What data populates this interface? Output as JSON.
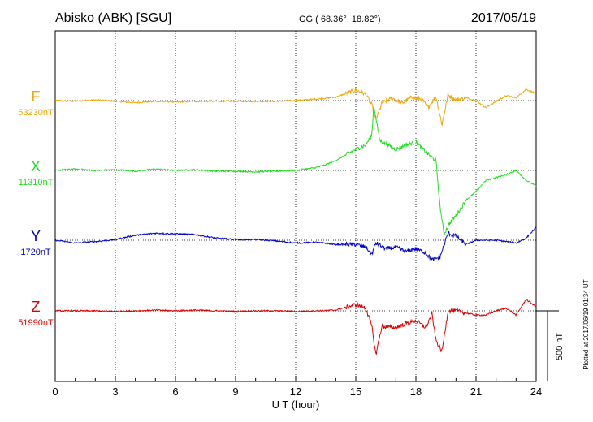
{
  "header": {
    "station": "Abisko (ABK)  [SGU]",
    "coords": "GG ( 68.36°,  18.82°)",
    "date": "2017/05/19"
  },
  "footer": {
    "plotted": "Plotted at 2017/06/19 01:34 UT"
  },
  "scale": {
    "label": "500 nT",
    "value_nT": 500
  },
  "colors": {
    "F": "#f0a800",
    "X": "#22dd22",
    "Y": "#0000cc",
    "Z": "#dd0000"
  },
  "chart_data": {
    "type": "line",
    "title": "Abisko (ABK)  [SGU]",
    "xlabel": "U T (hour)",
    "xlim": [
      0,
      24
    ],
    "x_ticks": [
      "0",
      "3",
      "6",
      "9",
      "12",
      "15",
      "18",
      "21",
      "24"
    ],
    "grid": true,
    "scale_bar_nT": 500,
    "series": [
      {
        "name": "F",
        "baseline_label": "53230nT",
        "baseline_nT": 53230,
        "points": [
          [
            0,
            53230
          ],
          [
            1,
            53225
          ],
          [
            2,
            53235
          ],
          [
            3,
            53225
          ],
          [
            4,
            53215
          ],
          [
            5,
            53225
          ],
          [
            6,
            53220
          ],
          [
            7,
            53225
          ],
          [
            8,
            53225
          ],
          [
            9,
            53225
          ],
          [
            10,
            53225
          ],
          [
            11,
            53225
          ],
          [
            12,
            53230
          ],
          [
            13,
            53240
          ],
          [
            14,
            53255
          ],
          [
            14.5,
            53280
          ],
          [
            15,
            53305
          ],
          [
            15.5,
            53275
          ],
          [
            15.8,
            53200
          ],
          [
            16,
            53090
          ],
          [
            16.3,
            53210
          ],
          [
            16.8,
            53250
          ],
          [
            17.3,
            53210
          ],
          [
            17.8,
            53255
          ],
          [
            18.3,
            53240
          ],
          [
            18.6,
            53180
          ],
          [
            19,
            53260
          ],
          [
            19.3,
            53060
          ],
          [
            19.6,
            53270
          ],
          [
            20,
            53235
          ],
          [
            20.5,
            53250
          ],
          [
            21,
            53230
          ],
          [
            21.5,
            53180
          ],
          [
            22,
            53225
          ],
          [
            22.5,
            53265
          ],
          [
            23,
            53250
          ],
          [
            23.5,
            53310
          ],
          [
            24,
            53280
          ]
        ]
      },
      {
        "name": "X",
        "baseline_label": "11310nT",
        "baseline_nT": 11310,
        "points": [
          [
            0,
            11310
          ],
          [
            1,
            11320
          ],
          [
            2,
            11310
          ],
          [
            3,
            11315
          ],
          [
            4,
            11305
          ],
          [
            5,
            11320
          ],
          [
            6,
            11310
          ],
          [
            7,
            11315
          ],
          [
            8,
            11305
          ],
          [
            9,
            11305
          ],
          [
            10,
            11300
          ],
          [
            11,
            11305
          ],
          [
            12,
            11310
          ],
          [
            13,
            11330
          ],
          [
            13.5,
            11350
          ],
          [
            14,
            11380
          ],
          [
            15,
            11460
          ],
          [
            15.5,
            11490
          ],
          [
            15.8,
            11560
          ],
          [
            15.9,
            11770
          ],
          [
            16.2,
            11520
          ],
          [
            17,
            11460
          ],
          [
            17.5,
            11490
          ],
          [
            18,
            11510
          ],
          [
            18.5,
            11440
          ],
          [
            19,
            11380
          ],
          [
            19.2,
            11060
          ],
          [
            19.4,
            10860
          ],
          [
            19.7,
            10940
          ],
          [
            20,
            10990
          ],
          [
            20.5,
            11100
          ],
          [
            21,
            11160
          ],
          [
            21.5,
            11240
          ],
          [
            22,
            11260
          ],
          [
            22.5,
            11280
          ],
          [
            23,
            11310
          ],
          [
            23.5,
            11240
          ],
          [
            24,
            11200
          ]
        ]
      },
      {
        "name": "Y",
        "baseline_label": "1720nT",
        "baseline_nT": 1720,
        "points": [
          [
            0,
            1720
          ],
          [
            1,
            1700
          ],
          [
            2,
            1710
          ],
          [
            3,
            1725
          ],
          [
            4,
            1755
          ],
          [
            5,
            1770
          ],
          [
            6,
            1765
          ],
          [
            7,
            1760
          ],
          [
            8,
            1735
          ],
          [
            9,
            1725
          ],
          [
            10,
            1725
          ],
          [
            11,
            1715
          ],
          [
            12,
            1700
          ],
          [
            13,
            1705
          ],
          [
            14,
            1690
          ],
          [
            15,
            1690
          ],
          [
            15.5,
            1670
          ],
          [
            15.8,
            1620
          ],
          [
            16,
            1700
          ],
          [
            16.5,
            1660
          ],
          [
            17,
            1670
          ],
          [
            17.5,
            1640
          ],
          [
            18,
            1660
          ],
          [
            18.5,
            1630
          ],
          [
            18.8,
            1580
          ],
          [
            19.2,
            1600
          ],
          [
            19.6,
            1770
          ],
          [
            20,
            1750
          ],
          [
            20.5,
            1690
          ],
          [
            21,
            1720
          ],
          [
            22,
            1720
          ],
          [
            23,
            1700
          ],
          [
            23.5,
            1735
          ],
          [
            24,
            1810
          ]
        ]
      },
      {
        "name": "Z",
        "baseline_label": "51990nT",
        "baseline_nT": 51990,
        "points": [
          [
            0,
            51990
          ],
          [
            2,
            51990
          ],
          [
            3,
            51985
          ],
          [
            4,
            51990
          ],
          [
            5,
            51995
          ],
          [
            6,
            51990
          ],
          [
            7,
            51995
          ],
          [
            8,
            51990
          ],
          [
            9,
            51985
          ],
          [
            10,
            51990
          ],
          [
            11,
            51990
          ],
          [
            12,
            51985
          ],
          [
            13,
            51990
          ],
          [
            14,
            51995
          ],
          [
            14.5,
            52015
          ],
          [
            15,
            52035
          ],
          [
            15.5,
            52010
          ],
          [
            15.8,
            51880
          ],
          [
            16,
            51680
          ],
          [
            16.3,
            51880
          ],
          [
            17,
            51870
          ],
          [
            17.5,
            51900
          ],
          [
            18,
            51920
          ],
          [
            18.5,
            51870
          ],
          [
            18.8,
            51970
          ],
          [
            19,
            51780
          ],
          [
            19.3,
            51700
          ],
          [
            19.6,
            51990
          ],
          [
            20,
            51990
          ],
          [
            21,
            51960
          ],
          [
            21.5,
            51960
          ],
          [
            22,
            51990
          ],
          [
            22.5,
            52010
          ],
          [
            23,
            51960
          ],
          [
            23.5,
            52070
          ],
          [
            24,
            52020
          ]
        ]
      }
    ]
  }
}
